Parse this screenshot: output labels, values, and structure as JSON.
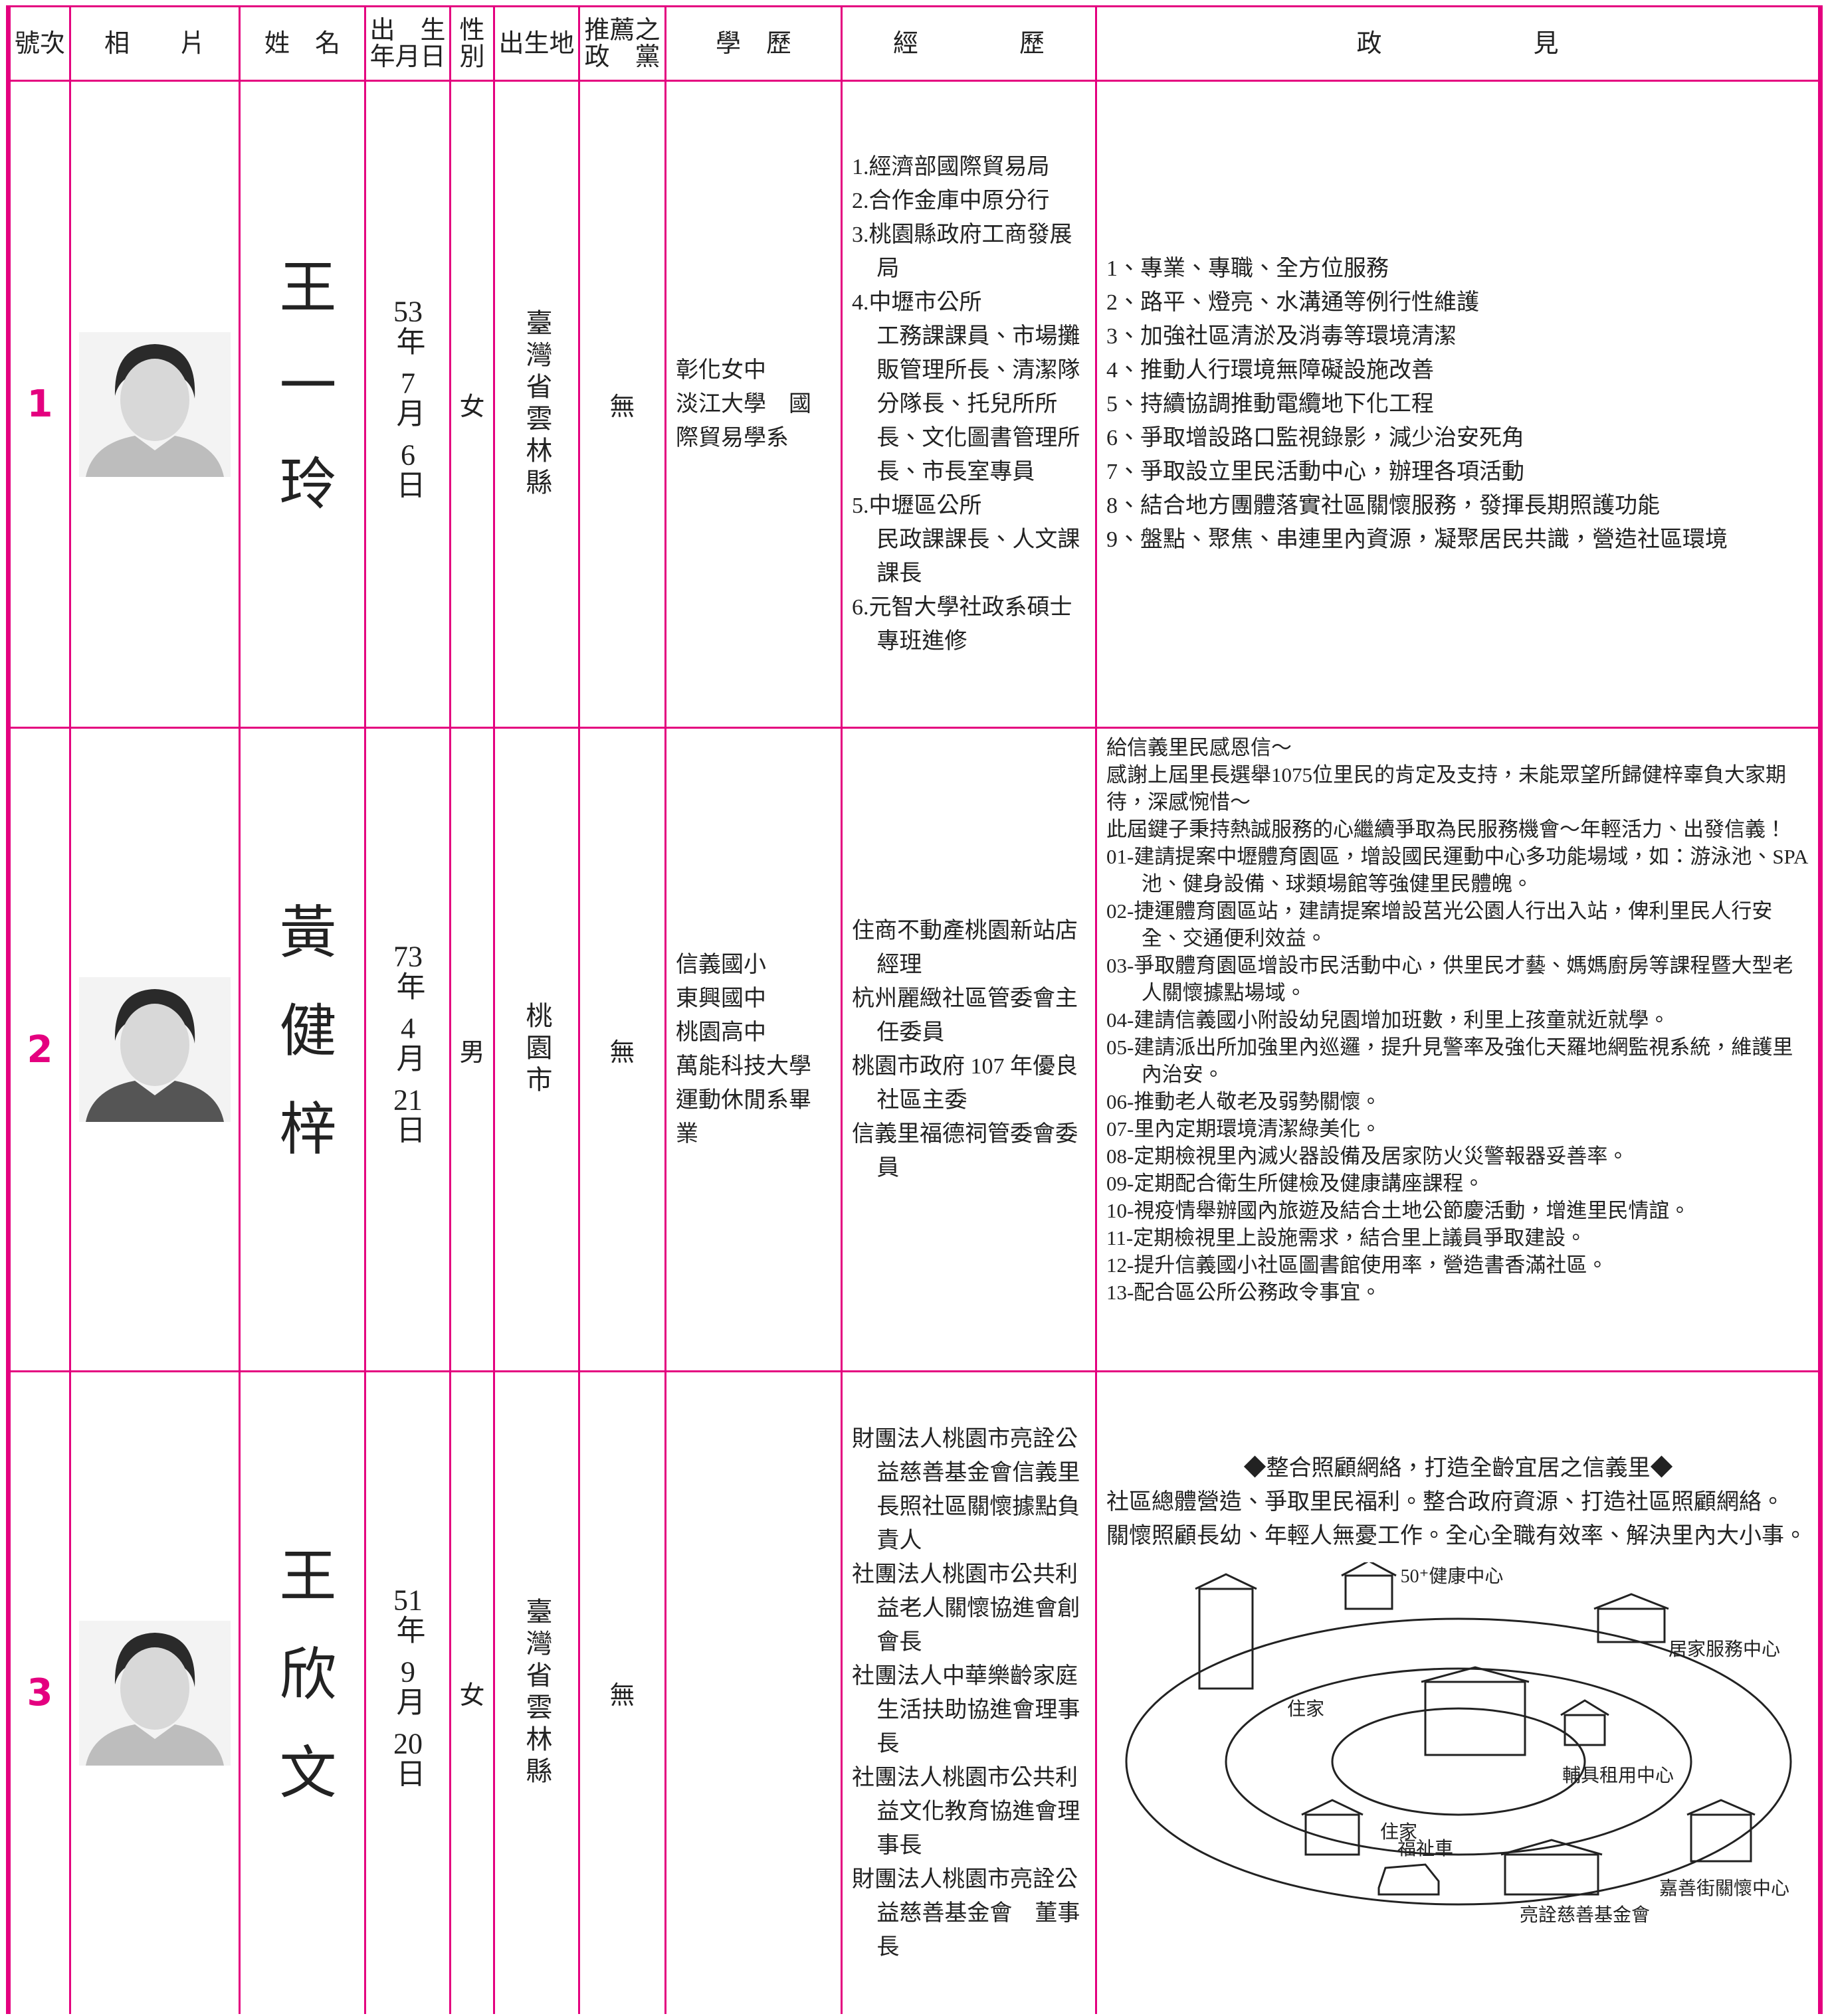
{
  "header": {
    "columns": [
      "號次",
      "相　　片",
      "姓　名",
      "出　生\n年月日",
      "性\n別",
      "出生地",
      "推薦之\n政　黨",
      "學　歷",
      "經　　　　歷",
      "政　　　　　　見"
    ]
  },
  "candidates": [
    {
      "number": 1,
      "name": "王一玲",
      "birth": "53年7月6日",
      "gender": "女",
      "birthplace": "臺灣省雲林縣",
      "party": "無",
      "education": [
        "彰化女中",
        "淡江大學　國際貿易學系"
      ],
      "experience": [
        [
          "1.經濟部國際貿易局"
        ],
        [
          "2.合作金庫中原分行"
        ],
        [
          "3.桃園縣政府工商發展局"
        ],
        [
          "4.中壢市公所",
          "工務課課員、市場攤販管理所長、清潔隊分隊長、托兒所所長、文化圖書管理所長、市長室專員"
        ],
        [
          "5.中壢區公所",
          "民政課課長、人文課課長"
        ],
        [
          "6.元智大學社政系碩士專班進修"
        ]
      ],
      "platform": [
        "1、專業、專職、全方位服務",
        "2、路平、燈亮、水溝通等例行性維護",
        "3、加強社區清淤及消毒等環境清潔",
        "4、推動人行環境無障礙設施改善",
        "5、持續協調推動電纜地下化工程",
        "6、爭取增設路口監視錄影，減少治安死角",
        "7、爭取設立里民活動中心，辦理各項活動",
        "8、結合地方團體落實社區關懷服務，發揮長期照護功能",
        "9、盤點、聚焦、串連里內資源，凝聚居民共識，營造社區環境"
      ]
    },
    {
      "number": 2,
      "name": "黃健梓",
      "birth": "73年4月21日",
      "gender": "男",
      "birthplace": "桃園市",
      "party": "無",
      "education": [
        "信義國小",
        "東興國中",
        "桃園高中",
        "萬能科技大學運動休閒系畢業"
      ],
      "experience": [
        [
          "住商不動產桃園新站店　經理"
        ],
        [
          "杭州麗緻社區管委會主任委員"
        ],
        [
          "桃園市政府 107 年優良社區主委"
        ],
        [
          "信義里福德祠管委會委員"
        ]
      ],
      "platform_intro": [
        "給信義里民感恩信～",
        "感謝上屆里長選舉1075位里民的肯定及支持，未能眾望所歸健梓辜負大家期待，深感惋惜～",
        "此屆鍵子秉持熱誠服務的心繼續爭取為民服務機會～年輕活力、出發信義！"
      ],
      "platform": [
        "01-建請提案中壢體育園區，增設國民運動中心多功能場域，如：游泳池、SPA池、健身設備、球類場館等強健里民體魄。",
        "02-捷運體育園區站，建請提案增設莒光公園人行出入站，俾利里民人行安全、交通便利效益。",
        "03-爭取體育園區增設市民活動中心，供里民才藝、媽媽廚房等課程暨大型老人關懷據點場域。",
        "04-建請信義國小附設幼兒園增加班數，利里上孩童就近就學。",
        "05-建請派出所加強里內巡邏，提升見警率及強化天羅地網監視系統，維護里內治安。",
        "06-推動老人敬老及弱勢關懷。",
        "07-里內定期環境清潔綠美化。",
        "08-定期檢視里內滅火器設備及居家防火災警報器妥善率。",
        "09-定期配合衛生所健檢及健康講座課程。",
        "10-視疫情舉辦國內旅遊及結合土地公節慶活動，增進里民情誼。",
        "11-定期檢視里上設施需求，結合里上議員爭取建設。",
        "12-提升信義國小社區圖書館使用率，營造書香滿社區。",
        "13-配合區公所公務政令事宜。"
      ]
    },
    {
      "number": 3,
      "name": "王欣文",
      "birth": "51年9月20日",
      "gender": "女",
      "birthplace": "臺灣省雲林縣",
      "party": "無",
      "experience": [
        [
          "財團法人桃園市亮詮公益慈善基金會信義里長照社區關懷據點負責人"
        ],
        [
          "社團法人桃園市公共利益老人關懷協進會創會長"
        ],
        [
          "社團法人中華樂齡家庭生活扶助協進會理事長"
        ],
        [
          "社團法人桃園市公共利益文化教育協進會理事長"
        ],
        [
          "財團法人桃園市亮詮公益慈善基金會　董事長"
        ]
      ],
      "platform_title": "◆整合照顧網絡，打造全齡宜居之信義里◆",
      "platform": [
        "社區總體營造、爭取里民福利。整合政府資源、打造社區照顧網絡。",
        "關懷照顧長幼、年輕人無憂工作。全心全職有效率、解決里內大小事。"
      ],
      "diagram_labels": [
        "50⁺健康中心",
        "住家",
        "居家服務中心",
        "輔具租用中心",
        "住家",
        "嘉善街關懷中心",
        "福祉車",
        "亮詮慈善基金會"
      ]
    }
  ]
}
